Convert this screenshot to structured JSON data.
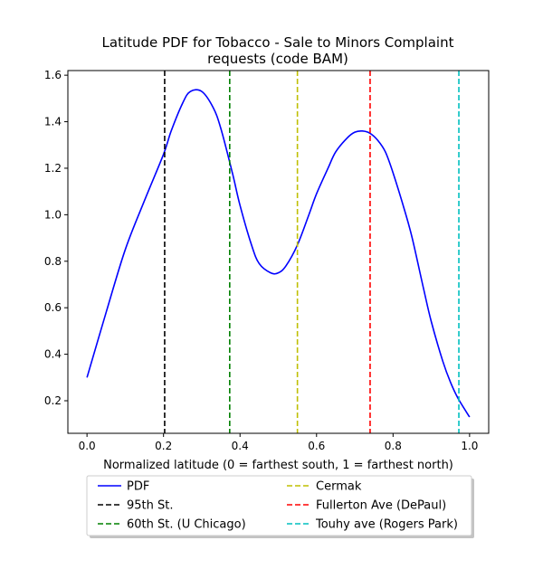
{
  "chart_data": {
    "type": "line",
    "title_line1": "Latitude PDF for Tobacco - Sale to Minors Complaint",
    "title_line2": "requests (code BAM)",
    "xlabel": "Normalized latitude (0 = farthest south, 1 = farthest north)",
    "ylabel": "",
    "xlim": [
      -0.05,
      1.05
    ],
    "ylim": [
      0.06,
      1.62
    ],
    "x_ticks": [
      "0.0",
      "0.2",
      "0.4",
      "0.6",
      "0.8",
      "1.0"
    ],
    "y_ticks": [
      "0.2",
      "0.4",
      "0.6",
      "0.8",
      "1.0",
      "1.2",
      "1.4",
      "1.6"
    ],
    "grid": false,
    "legend_position": "below plot",
    "series": [
      {
        "name": "PDF",
        "color": "#0000ff",
        "style": "solid",
        "x": [
          0.0,
          0.05,
          0.1,
          0.15,
          0.2,
          0.22,
          0.25,
          0.27,
          0.3,
          0.33,
          0.35,
          0.38,
          0.4,
          0.43,
          0.45,
          0.48,
          0.5,
          0.52,
          0.55,
          0.58,
          0.6,
          0.63,
          0.65,
          0.68,
          0.7,
          0.72,
          0.74,
          0.76,
          0.78,
          0.8,
          0.83,
          0.85,
          0.88,
          0.9,
          0.93,
          0.95,
          0.97,
          1.0
        ],
        "y": [
          0.3,
          0.58,
          0.85,
          1.06,
          1.26,
          1.36,
          1.48,
          1.53,
          1.53,
          1.46,
          1.37,
          1.18,
          1.04,
          0.87,
          0.79,
          0.75,
          0.75,
          0.78,
          0.87,
          1.0,
          1.09,
          1.2,
          1.27,
          1.33,
          1.355,
          1.36,
          1.35,
          1.32,
          1.27,
          1.18,
          1.02,
          0.9,
          0.68,
          0.54,
          0.37,
          0.28,
          0.21,
          0.13
        ]
      },
      {
        "name": "95th St.",
        "color": "#000000",
        "style": "dashed",
        "x_vline": 0.203
      },
      {
        "name": "60th St. (U Chicago)",
        "color": "#008000",
        "style": "dashed",
        "x_vline": 0.373
      },
      {
        "name": "Cermak",
        "color": "#bfbf00",
        "style": "dashed",
        "x_vline": 0.55
      },
      {
        "name": "Fullerton Ave (DePaul)",
        "color": "#ff0000",
        "style": "dashed",
        "x_vline": 0.74
      },
      {
        "name": "Touhy ave (Rogers Park)",
        "color": "#00bfbf",
        "style": "dashed",
        "x_vline": 0.972
      }
    ]
  }
}
